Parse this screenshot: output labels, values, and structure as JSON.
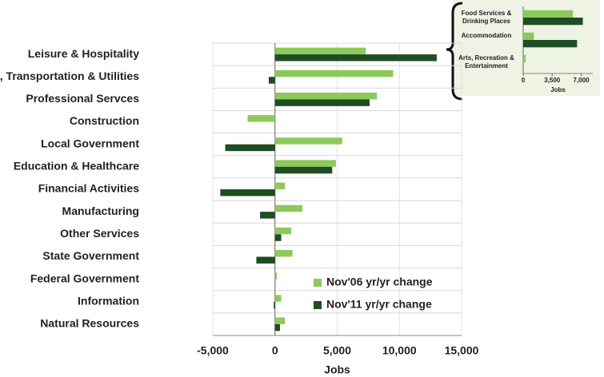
{
  "chart_data": [
    {
      "type": "hbar",
      "xlabel": "Jobs",
      "categories": [
        "Leisure & Hospitality",
        "Trade, Transportation & Utilities",
        "Professional Servces",
        "Construction",
        "Local Government",
        "Education & Healthcare",
        "Financial Activities",
        "Manufacturing",
        "Other Services",
        "State Government",
        "Federal Government",
        "Information",
        "Natural Resources"
      ],
      "series": [
        {
          "name": "Nov'06 yr/yr change",
          "color": "#8dc95a",
          "values": [
            7300,
            9500,
            8200,
            -2200,
            5400,
            4900,
            800,
            2200,
            1300,
            1400,
            150,
            500,
            800
          ]
        },
        {
          "name": "Nov'11 yr/yr change",
          "color": "#1e4d24",
          "values": [
            13000,
            -500,
            7600,
            0,
            -4000,
            4600,
            -4400,
            -1200,
            500,
            -1500,
            0,
            -100,
            400
          ]
        }
      ],
      "xlim": [
        -5000,
        15000
      ],
      "xticks": [
        {
          "value": -5000,
          "label": "-5,000"
        },
        0,
        {
          "value": 5000,
          "label": "5,000"
        },
        {
          "value": 10000,
          "label": "10,000"
        },
        {
          "value": 15000,
          "label": "15,000"
        }
      ],
      "grid": true,
      "legend": "lower right"
    },
    {
      "type": "hbar",
      "xlabel": "Jobs",
      "categories": [
        "Food Services & Drinking Places",
        "Accommodation",
        "Arts, Recreation & Entertainment"
      ],
      "series": [
        {
          "name": "Nov'06 yr/yr change",
          "color": "#8dc95a",
          "values": [
            6000,
            1300,
            300
          ]
        },
        {
          "name": "Nov'11 yr/yr change",
          "color": "#1e4d24",
          "values": [
            7200,
            6500,
            0
          ]
        }
      ],
      "xlim": [
        0,
        8400
      ],
      "xticks": [
        0,
        {
          "value": 3500,
          "label": "3,500"
        },
        {
          "value": 7000,
          "label": "7,000"
        }
      ],
      "grid": false
    }
  ]
}
